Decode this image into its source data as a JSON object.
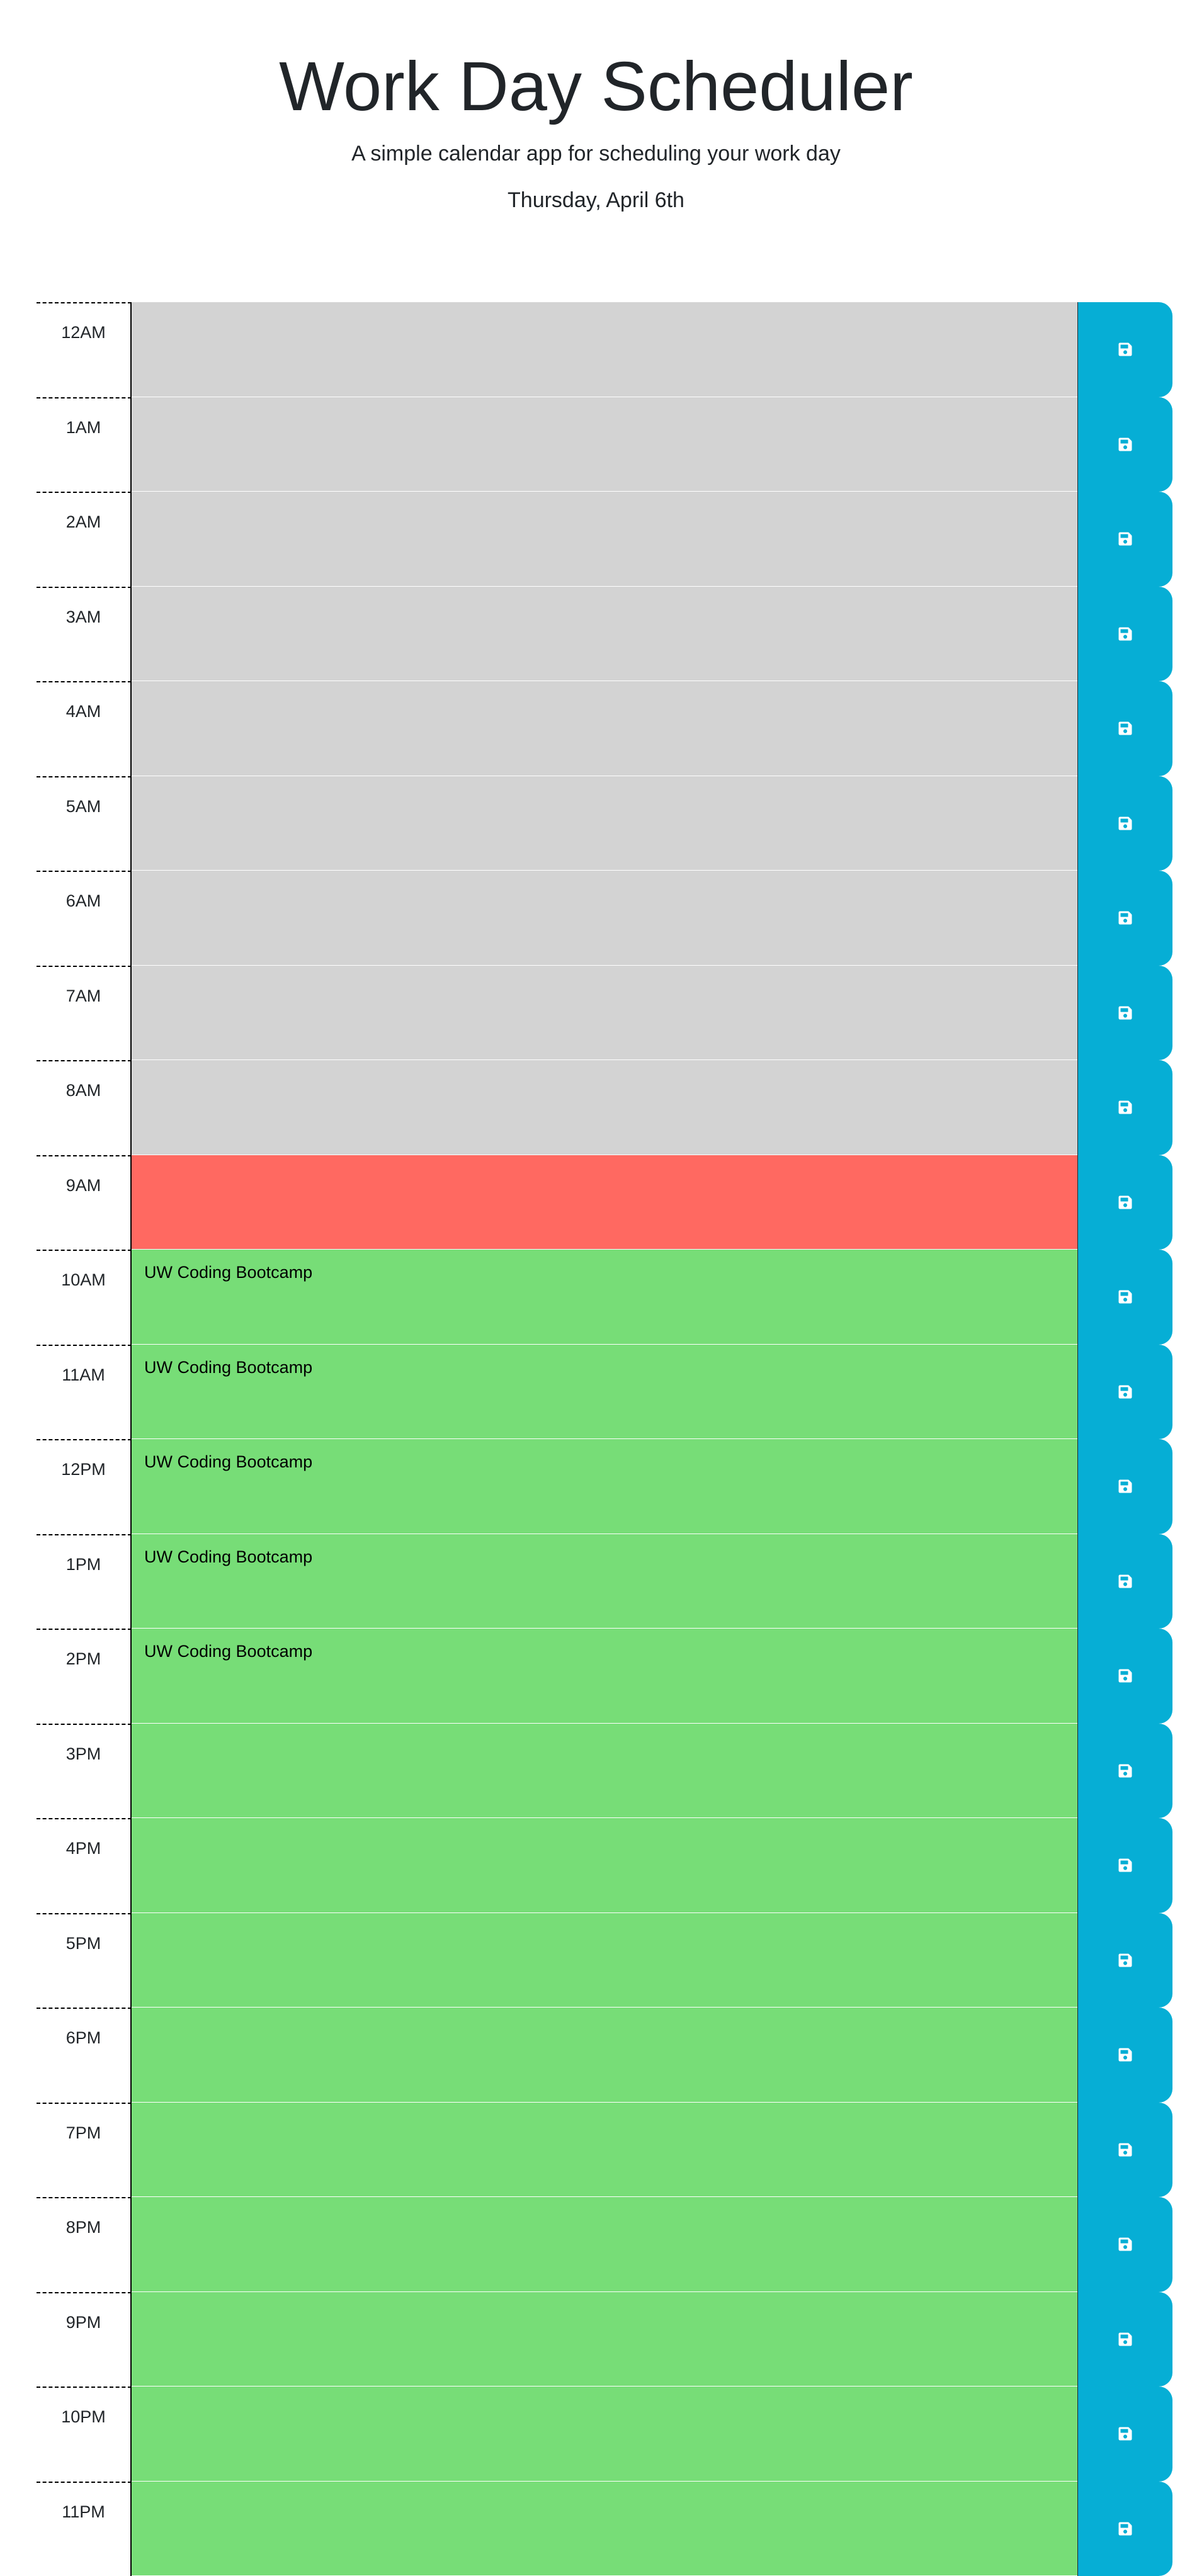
{
  "header": {
    "title": "Work Day Scheduler",
    "subtitle": "A simple calendar app for scheduling your work day",
    "current_day": "Thursday, April 6th"
  },
  "colors": {
    "past": "#d3d3d3",
    "present": "#ff6961",
    "future": "#77dd77",
    "save_button": "#06aed5"
  },
  "save_icon": "floppy-disk-icon",
  "hours": [
    {
      "label": "12AM",
      "text": "",
      "state": "past"
    },
    {
      "label": "1AM",
      "text": "",
      "state": "past"
    },
    {
      "label": "2AM",
      "text": "",
      "state": "past"
    },
    {
      "label": "3AM",
      "text": "",
      "state": "past"
    },
    {
      "label": "4AM",
      "text": "",
      "state": "past"
    },
    {
      "label": "5AM",
      "text": "",
      "state": "past"
    },
    {
      "label": "6AM",
      "text": "",
      "state": "past"
    },
    {
      "label": "7AM",
      "text": "",
      "state": "past"
    },
    {
      "label": "8AM",
      "text": "",
      "state": "past"
    },
    {
      "label": "9AM",
      "text": "",
      "state": "present"
    },
    {
      "label": "10AM",
      "text": "UW Coding Bootcamp",
      "state": "future"
    },
    {
      "label": "11AM",
      "text": "UW Coding Bootcamp",
      "state": "future"
    },
    {
      "label": "12PM",
      "text": "UW Coding Bootcamp",
      "state": "future"
    },
    {
      "label": "1PM",
      "text": "UW Coding Bootcamp",
      "state": "future"
    },
    {
      "label": "2PM",
      "text": "UW Coding Bootcamp",
      "state": "future"
    },
    {
      "label": "3PM",
      "text": "",
      "state": "future"
    },
    {
      "label": "4PM",
      "text": "",
      "state": "future"
    },
    {
      "label": "5PM",
      "text": "",
      "state": "future"
    },
    {
      "label": "6PM",
      "text": "",
      "state": "future"
    },
    {
      "label": "7PM",
      "text": "",
      "state": "future"
    },
    {
      "label": "8PM",
      "text": "",
      "state": "future"
    },
    {
      "label": "9PM",
      "text": "",
      "state": "future"
    },
    {
      "label": "10PM",
      "text": "",
      "state": "future"
    },
    {
      "label": "11PM",
      "text": "",
      "state": "future"
    }
  ]
}
